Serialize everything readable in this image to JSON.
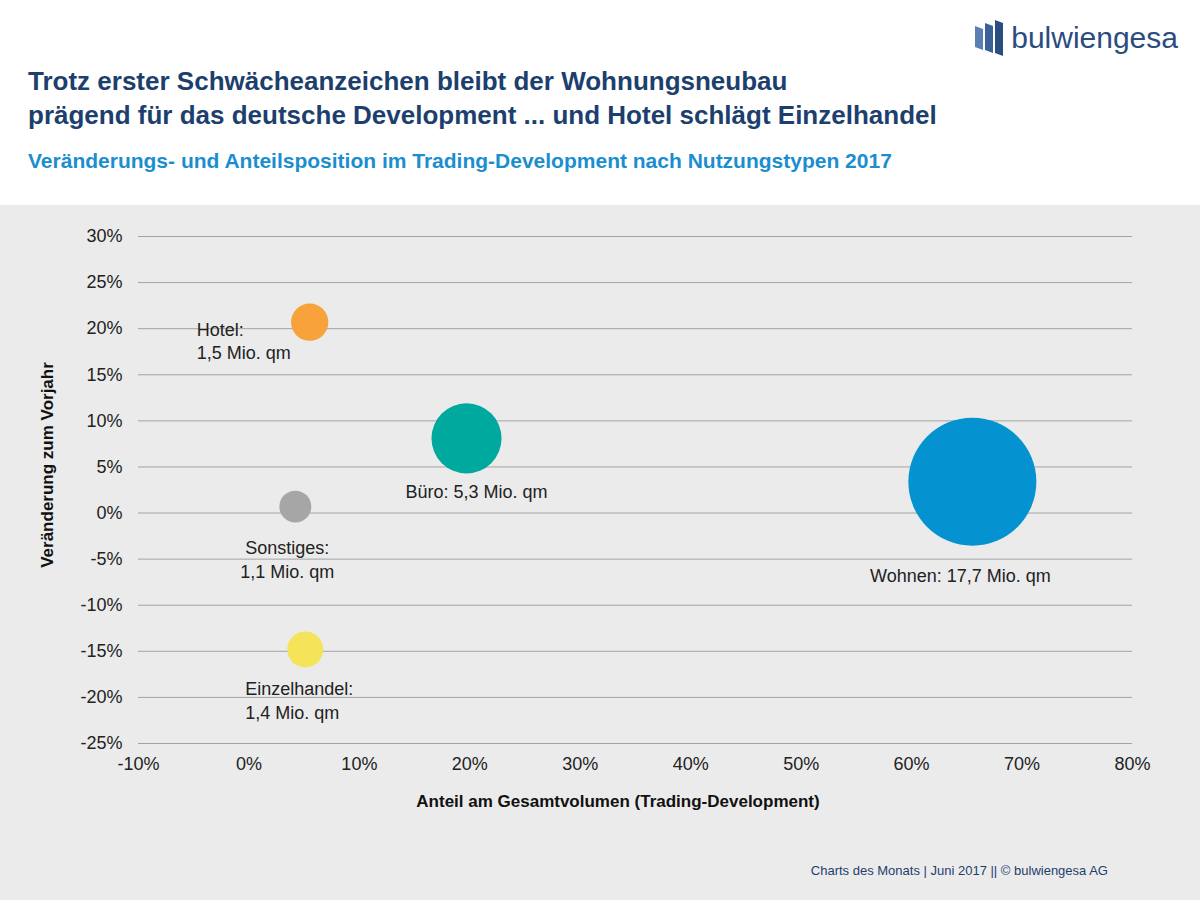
{
  "chart_data": {
    "type": "scatter",
    "title": [
      "Trotz erster Schwächeanzeichen bleibt der Wohnungsneubau",
      "prägend für das deutsche Development ... und Hotel schlägt Einzelhandel"
    ],
    "subtitle": "Veränderungs- und Anteilsposition im Trading-Development nach Nutzungstypen 2017",
    "logo": "bulwiengesa",
    "source": "Charts des Monats | Juni 2017 || © bulwiengesa AG",
    "xlabel": "Anteil am Gesamtvolumen (Trading-Development)",
    "ylabel": "Veränderung zum Vorjahr",
    "x": [
      5.5,
      19.7,
      4.2,
      5.1,
      65.5
    ],
    "values": [
      20.7,
      8.1,
      0.7,
      -14.8,
      3.4
    ],
    "sizes": [
      1.5,
      5.3,
      1.1,
      1.4,
      17.7
    ],
    "point_labels": [
      [
        "Hotel:",
        "1,5 Mio. qm"
      ],
      [
        "Büro: 5,3 Mio. qm"
      ],
      [
        "Sonstiges:",
        "1,1 Mio. qm"
      ],
      [
        "Einzelhandel:",
        "1,4 Mio. qm"
      ],
      [
        "Wohnen: 17,7 Mio. qm"
      ]
    ],
    "colors": [
      "#f7a23b",
      "#00a99d",
      "#a6a6a6",
      "#f5e45a",
      "#0592d0"
    ],
    "xlim": [
      -10,
      80
    ],
    "xticks": [
      {
        "value": -10,
        "label": "-10%"
      },
      {
        "value": 0,
        "label": "0%"
      },
      {
        "value": 10,
        "label": "10%"
      },
      {
        "value": 20,
        "label": "20%"
      },
      {
        "value": 30,
        "label": "30%"
      },
      {
        "value": 40,
        "label": "40%"
      },
      {
        "value": 50,
        "label": "50%"
      },
      {
        "value": 60,
        "label": "60%"
      },
      {
        "value": 70,
        "label": "70%"
      },
      {
        "value": 80,
        "label": "80%"
      }
    ],
    "ylim": [
      -25,
      30
    ],
    "yticks": [
      {
        "value": -25,
        "label": "-25%"
      },
      {
        "value": -20,
        "label": "-20%"
      },
      {
        "value": -15,
        "label": "-15%"
      },
      {
        "value": -10,
        "label": "-10%"
      },
      {
        "value": -5,
        "label": "-5%"
      },
      {
        "value": 0,
        "label": "0%"
      },
      {
        "value": 5,
        "label": "5%"
      },
      {
        "value": 10,
        "label": "10%"
      },
      {
        "value": 15,
        "label": "15%"
      },
      {
        "value": 20,
        "label": "20%"
      },
      {
        "value": 25,
        "label": "25%"
      },
      {
        "value": 30,
        "label": "30%"
      }
    ],
    "grid": true
  }
}
